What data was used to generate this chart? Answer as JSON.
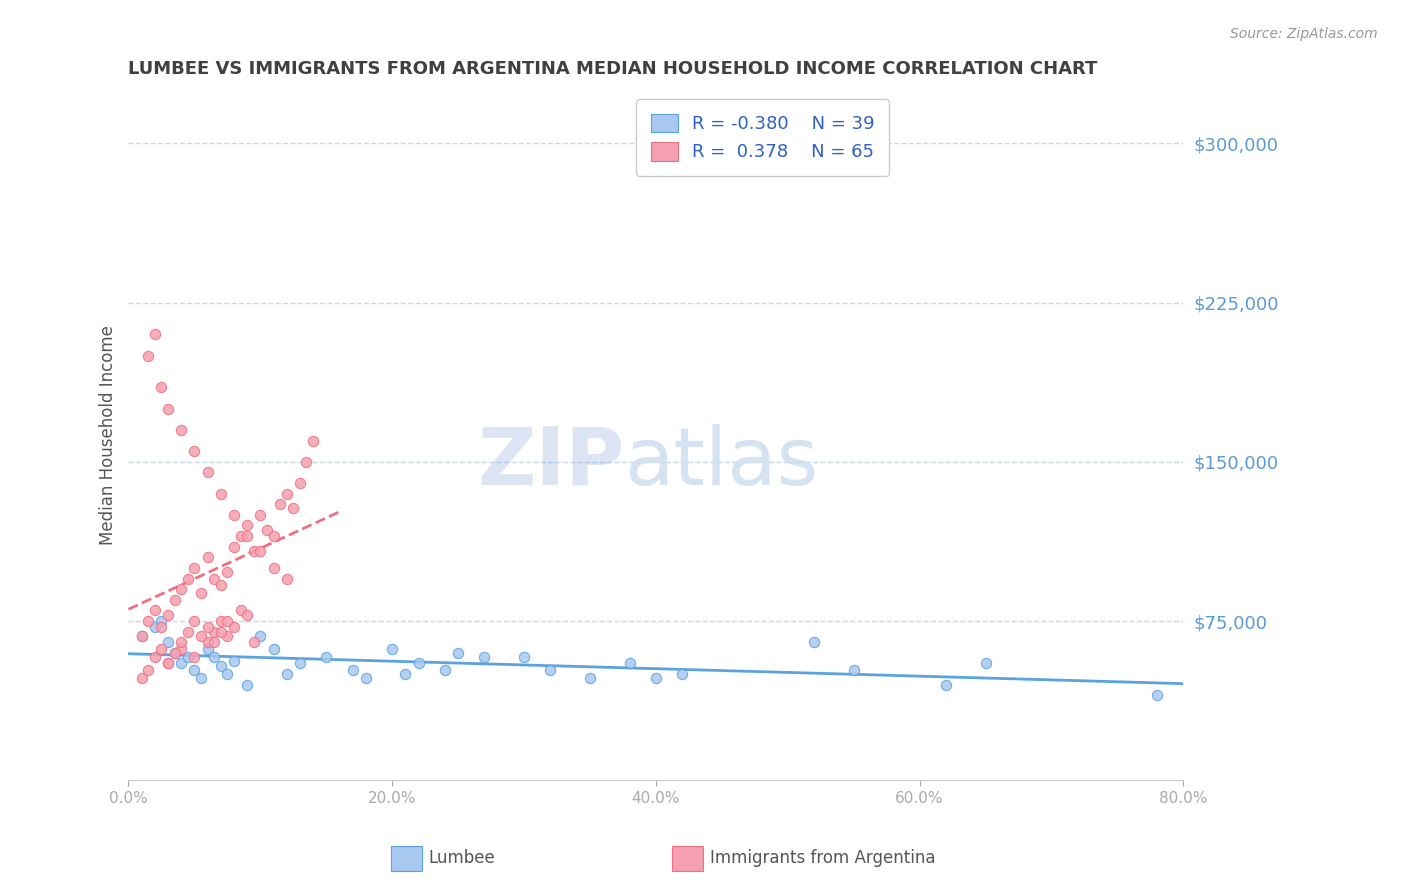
{
  "title": "LUMBEE VS IMMIGRANTS FROM ARGENTINA MEDIAN HOUSEHOLD INCOME CORRELATION CHART",
  "source": "Source: ZipAtlas.com",
  "xlabel": "",
  "ylabel": "Median Household Income",
  "watermark_zip": "ZIP",
  "watermark_atlas": "atlas",
  "xlim": [
    0.0,
    0.8
  ],
  "ylim": [
    0,
    325000
  ],
  "yticks": [
    0,
    75000,
    150000,
    225000,
    300000
  ],
  "ytick_labels": [
    "",
    "$75,000",
    "$150,000",
    "$225,000",
    "$300,000"
  ],
  "xtick_labels": [
    "0.0%",
    "20.0%",
    "40.0%",
    "60.0%",
    "80.0%"
  ],
  "xticks": [
    0.0,
    0.2,
    0.4,
    0.6,
    0.8
  ],
  "series1_color": "#a8c8f0",
  "series2_color": "#f5a0b0",
  "trendline1_color": "#5ba3e0",
  "trendline2_color": "#f07080",
  "title_color": "#404040",
  "axis_color": "#5b9bd5",
  "watermark_color": "#d0dff0",
  "watermark_zip_color": "#4472c4",
  "grid_color": "#c8d8e8",
  "lumbee_x": [
    0.01,
    0.02,
    0.025,
    0.03,
    0.035,
    0.04,
    0.045,
    0.05,
    0.055,
    0.06,
    0.065,
    0.07,
    0.075,
    0.08,
    0.09,
    0.1,
    0.11,
    0.12,
    0.13,
    0.15,
    0.17,
    0.18,
    0.2,
    0.21,
    0.22,
    0.24,
    0.25,
    0.27,
    0.3,
    0.32,
    0.35,
    0.38,
    0.4,
    0.42,
    0.52,
    0.55,
    0.62,
    0.65,
    0.78
  ],
  "lumbee_y": [
    68000,
    72000,
    75000,
    65000,
    60000,
    55000,
    58000,
    52000,
    48000,
    62000,
    58000,
    54000,
    50000,
    56000,
    45000,
    68000,
    62000,
    50000,
    55000,
    58000,
    52000,
    48000,
    62000,
    50000,
    55000,
    52000,
    60000,
    58000,
    58000,
    52000,
    48000,
    55000,
    48000,
    50000,
    65000,
    52000,
    45000,
    55000,
    40000
  ],
  "argentina_x": [
    0.01,
    0.015,
    0.02,
    0.025,
    0.03,
    0.035,
    0.04,
    0.045,
    0.05,
    0.055,
    0.06,
    0.065,
    0.07,
    0.075,
    0.08,
    0.085,
    0.09,
    0.095,
    0.1,
    0.105,
    0.11,
    0.115,
    0.12,
    0.125,
    0.13,
    0.135,
    0.14,
    0.015,
    0.02,
    0.025,
    0.03,
    0.04,
    0.05,
    0.06,
    0.07,
    0.08,
    0.09,
    0.1,
    0.11,
    0.12,
    0.03,
    0.04,
    0.05,
    0.06,
    0.065,
    0.07,
    0.075,
    0.08,
    0.085,
    0.09,
    0.095,
    0.01,
    0.015,
    0.02,
    0.025,
    0.03,
    0.035,
    0.04,
    0.045,
    0.05,
    0.055,
    0.06,
    0.065,
    0.07,
    0.075
  ],
  "argentina_y": [
    68000,
    75000,
    80000,
    72000,
    78000,
    85000,
    90000,
    95000,
    100000,
    88000,
    105000,
    95000,
    92000,
    98000,
    110000,
    115000,
    120000,
    108000,
    125000,
    118000,
    115000,
    130000,
    135000,
    128000,
    140000,
    150000,
    160000,
    200000,
    210000,
    185000,
    175000,
    165000,
    155000,
    145000,
    135000,
    125000,
    115000,
    108000,
    100000,
    95000,
    55000,
    62000,
    58000,
    65000,
    70000,
    75000,
    68000,
    72000,
    80000,
    78000,
    65000,
    48000,
    52000,
    58000,
    62000,
    55000,
    60000,
    65000,
    70000,
    75000,
    68000,
    72000,
    65000,
    70000,
    75000
  ],
  "legend_r1": "-0.380",
  "legend_n1": "39",
  "legend_r2": "0.378",
  "legend_n2": "65",
  "legend_text_color": "#3060c0",
  "bottom_legend_label1": "Lumbee",
  "bottom_legend_label2": "Immigrants from Argentina"
}
